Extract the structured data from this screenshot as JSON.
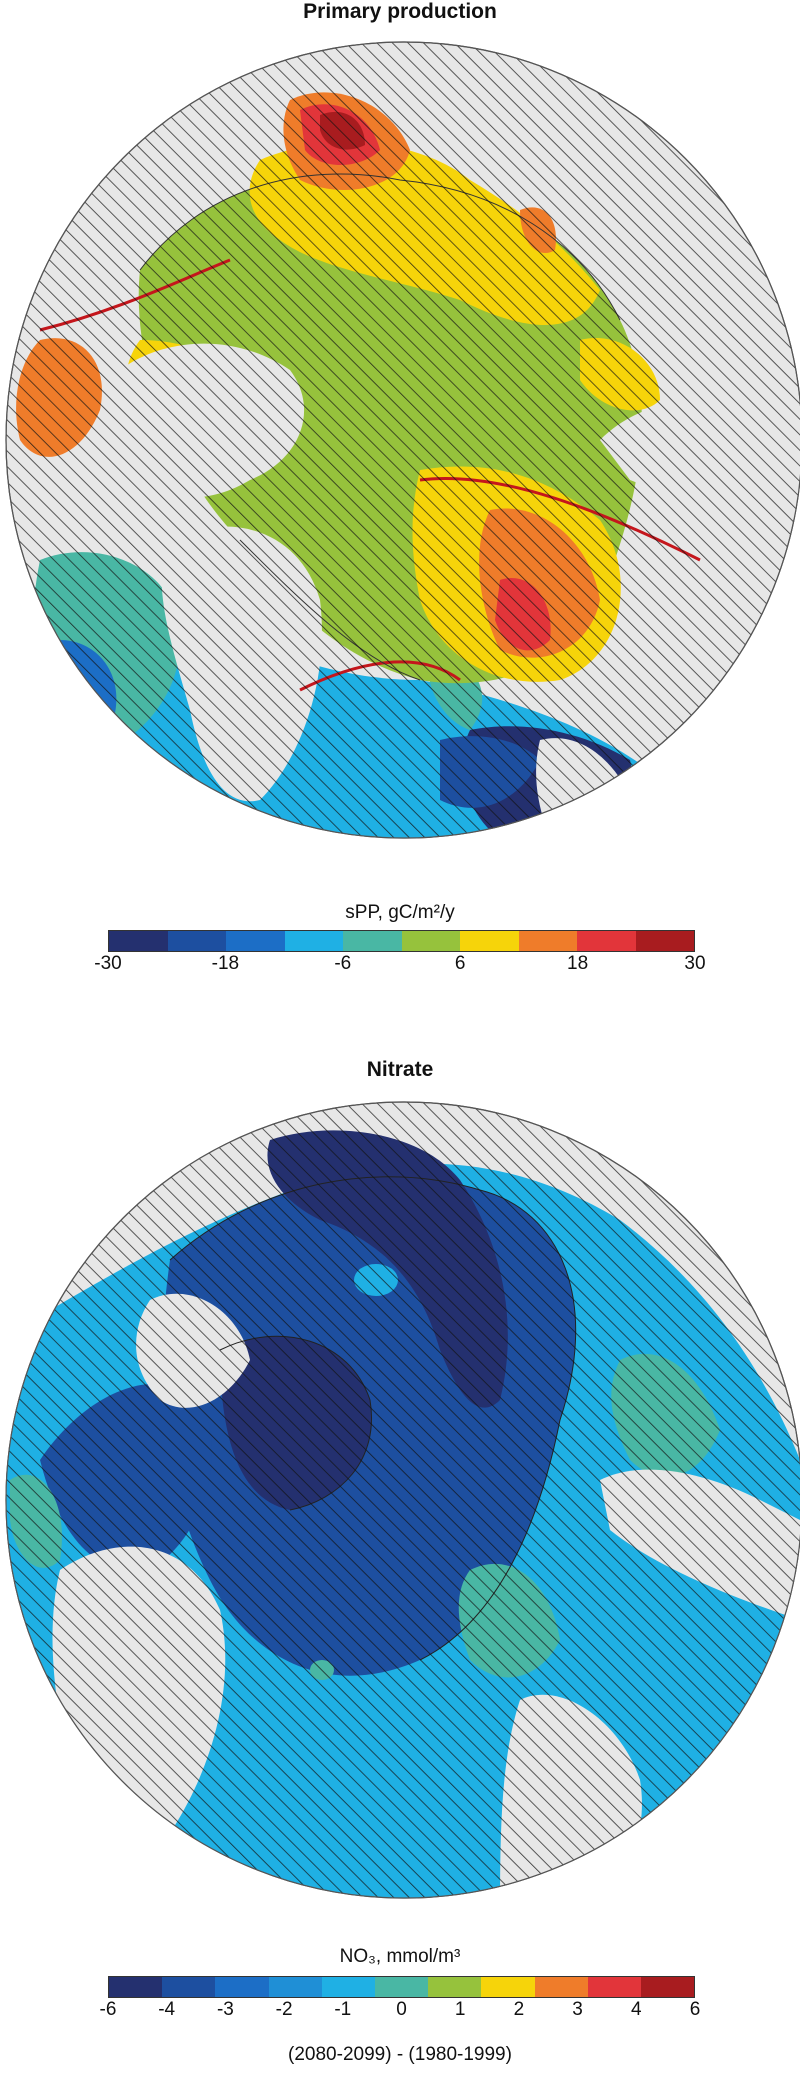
{
  "panel1": {
    "title": "Primary production",
    "colorbar_label": "sPP, gC/m²/y",
    "ticks": [
      "-30",
      "-18",
      "-6",
      "6",
      "18",
      "30"
    ],
    "colors": [
      "#24306f",
      "#1d4fa0",
      "#1c6ec6",
      "#1fb0e4",
      "#49b7a4",
      "#96c23c",
      "#f6d40a",
      "#ef7c2a",
      "#e2353a",
      "#a81c1f"
    ]
  },
  "panel2": {
    "title": "Nitrate",
    "colorbar_label": "NO₃, mmol/m³",
    "ticks": [
      "-6",
      "-4",
      "-3",
      "-2",
      "-1",
      "0",
      "1",
      "2",
      "3",
      "4",
      "6"
    ],
    "colors": [
      "#24306f",
      "#1d4fa0",
      "#1c6ec6",
      "#1f8fd6",
      "#1fb0e4",
      "#49b7a4",
      "#96c23c",
      "#f6d40a",
      "#ef7c2a",
      "#e2353a",
      "#a81c1f"
    ]
  },
  "footer": "(2080-2099) - (1980-1999)"
}
